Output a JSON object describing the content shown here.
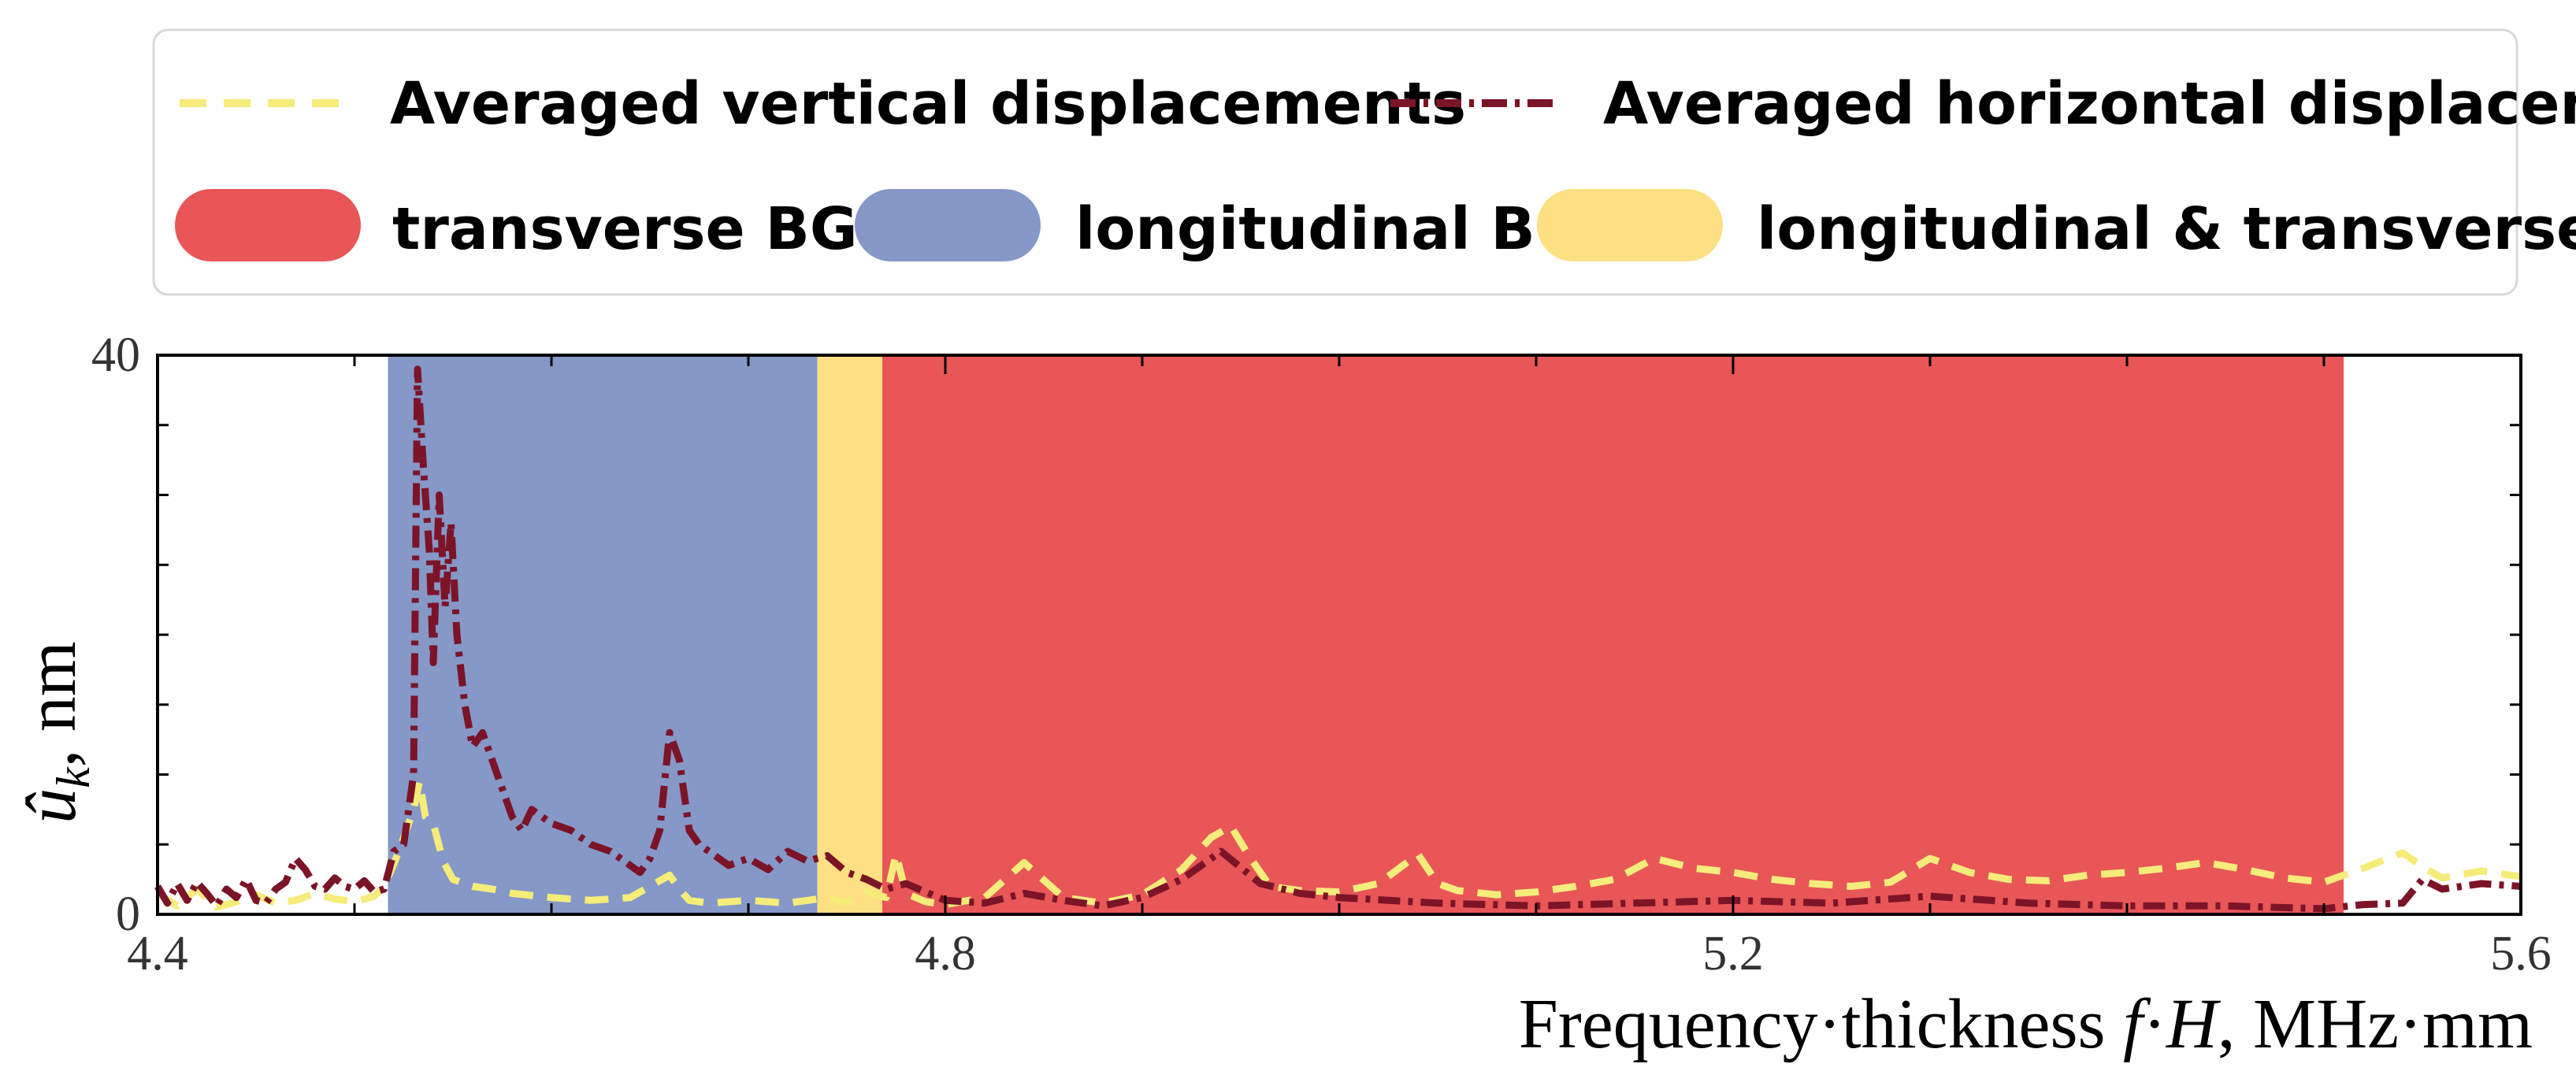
{
  "chart_data": {
    "type": "line",
    "title": "",
    "xlabel": "Frequency·thickness  f·H, MHz·mm",
    "ylabel": "û_k, nm",
    "ylabel_main": "û",
    "ylabel_sub": "k",
    "ylabel_unit": ", nm",
    "xlabel_prefix": "Frequency·thickness  ",
    "xlabel_f": "f",
    "xlabel_dot": "·",
    "xlabel_H": "H",
    "xlabel_unit": ", MHz·mm",
    "xlim": [
      4.4,
      5.6
    ],
    "ylim": [
      0,
      40
    ],
    "x_ticks": [
      4.4,
      4.8,
      5.2,
      5.6
    ],
    "x_tick_labels": [
      "4.4",
      "4.8",
      "5.2",
      "5.6"
    ],
    "y_ticks": [
      0,
      40
    ],
    "y_tick_labels": [
      "0",
      "40"
    ],
    "legend_position": "top",
    "bands": [
      {
        "name": "longitudinal BG",
        "x0": 4.517,
        "x1": 4.735,
        "color": "#8598c8"
      },
      {
        "name": "longitudinal & transverse BG",
        "x0": 4.735,
        "x1": 4.768,
        "color": "#fde084"
      },
      {
        "name": "transverse BG",
        "x0": 4.768,
        "x1": 5.51,
        "color": "#e85658"
      }
    ],
    "legend_entries": [
      {
        "label": "Averaged vertical displacements",
        "kind": "line",
        "color": "#f5ec7a"
      },
      {
        "label": "Averaged horizontal displacement",
        "kind": "line",
        "color": "#7c1428"
      },
      {
        "label": "transverse BG",
        "kind": "patch",
        "color": "#e85658"
      },
      {
        "label": "longitudinal BG",
        "kind": "patch",
        "color": "#8598c8"
      },
      {
        "label": "longitudinal & transverse BG",
        "kind": "patch",
        "color": "#fde084"
      }
    ],
    "series": [
      {
        "name": "Averaged vertical displacements",
        "color": "#f5ec7a",
        "style": "dashed",
        "x": [
          4.4,
          4.41,
          4.42,
          4.43,
          4.44,
          4.45,
          4.46,
          4.47,
          4.48,
          4.49,
          4.5,
          4.51,
          4.515,
          4.52,
          4.525,
          4.53,
          4.533,
          4.536,
          4.54,
          4.545,
          4.55,
          4.56,
          4.57,
          4.58,
          4.6,
          4.62,
          4.64,
          4.66,
          4.665,
          4.67,
          4.68,
          4.7,
          4.72,
          4.73,
          4.74,
          4.75,
          4.76,
          4.77,
          4.775,
          4.78,
          4.79,
          4.8,
          4.82,
          4.84,
          4.86,
          4.88,
          4.9,
          4.92,
          4.935,
          4.945,
          4.955,
          4.965,
          4.98,
          5.0,
          5.02,
          5.04,
          5.05,
          5.06,
          5.08,
          5.1,
          5.12,
          5.14,
          5.16,
          5.18,
          5.2,
          5.22,
          5.24,
          5.26,
          5.28,
          5.3,
          5.32,
          5.34,
          5.36,
          5.38,
          5.4,
          5.42,
          5.44,
          5.46,
          5.48,
          5.5,
          5.52,
          5.54,
          5.55,
          5.56,
          5.58,
          5.6
        ],
        "values": [
          1.5,
          0.6,
          1.8,
          0.5,
          0.9,
          1.4,
          0.8,
          1.0,
          1.5,
          1.1,
          0.9,
          1.3,
          2.0,
          3.6,
          5.5,
          7.5,
          9.5,
          7.0,
          6.5,
          3.8,
          2.5,
          2.0,
          1.8,
          1.5,
          1.2,
          1.0,
          1.2,
          2.8,
          1.8,
          1.0,
          0.8,
          1.0,
          0.8,
          1.0,
          1.2,
          0.8,
          1.6,
          1.2,
          4.3,
          1.5,
          0.9,
          0.7,
          1.2,
          3.7,
          1.2,
          0.8,
          1.4,
          3.2,
          5.5,
          6.3,
          4.0,
          2.0,
          1.7,
          1.6,
          2.2,
          4.3,
          2.2,
          1.7,
          1.4,
          1.6,
          2.0,
          2.5,
          4.0,
          3.3,
          3.0,
          2.5,
          2.2,
          2.0,
          2.3,
          4.0,
          3.0,
          2.5,
          2.4,
          2.8,
          3.0,
          3.3,
          3.7,
          3.2,
          2.6,
          2.3,
          3.3,
          4.4,
          3.4,
          2.6,
          3.1,
          2.7
        ]
      },
      {
        "name": "Averaged horizontal displacement",
        "color": "#7c1428",
        "style": "dashdot",
        "x": [
          4.4,
          4.405,
          4.41,
          4.415,
          4.42,
          4.425,
          4.43,
          4.435,
          4.44,
          4.445,
          4.45,
          4.455,
          4.46,
          4.465,
          4.47,
          4.475,
          4.48,
          4.485,
          4.49,
          4.495,
          4.5,
          4.505,
          4.51,
          4.515,
          4.52,
          4.525,
          4.53,
          4.532,
          4.535,
          4.538,
          4.54,
          4.543,
          4.546,
          4.549,
          4.552,
          4.556,
          4.56,
          4.565,
          4.57,
          4.575,
          4.58,
          4.585,
          4.59,
          4.6,
          4.61,
          4.62,
          4.63,
          4.64,
          4.645,
          4.65,
          4.655,
          4.66,
          4.665,
          4.67,
          4.675,
          4.68,
          4.69,
          4.7,
          4.71,
          4.72,
          4.73,
          4.74,
          4.75,
          4.76,
          4.77,
          4.78,
          4.8,
          4.82,
          4.84,
          4.86,
          4.88,
          4.9,
          4.92,
          4.94,
          4.96,
          4.98,
          5.0,
          5.05,
          5.1,
          5.15,
          5.2,
          5.25,
          5.3,
          5.35,
          5.4,
          5.45,
          5.5,
          5.52,
          5.54,
          5.55,
          5.56,
          5.58,
          5.6
        ],
        "values": [
          2.0,
          0.8,
          2.2,
          1.0,
          2.3,
          1.5,
          0.6,
          1.8,
          1.2,
          2.5,
          1.0,
          0.8,
          1.8,
          2.3,
          4.0,
          3.2,
          2.0,
          1.8,
          2.6,
          2.0,
          1.8,
          2.4,
          1.6,
          1.8,
          4.5,
          5.0,
          10.0,
          39.0,
          32.0,
          26.0,
          18.0,
          30.0,
          22.0,
          28.0,
          20.0,
          15.0,
          12.0,
          13.0,
          11.0,
          9.0,
          7.0,
          6.0,
          7.5,
          6.5,
          6.0,
          5.0,
          4.5,
          3.5,
          3.0,
          4.0,
          6.0,
          13.0,
          11.0,
          6.0,
          5.0,
          4.5,
          3.5,
          4.0,
          3.2,
          4.5,
          3.8,
          4.2,
          3.0,
          2.5,
          1.8,
          2.2,
          1.0,
          0.8,
          1.5,
          1.0,
          0.6,
          1.2,
          2.5,
          4.5,
          2.2,
          1.5,
          1.2,
          0.8,
          0.6,
          0.8,
          1.0,
          0.8,
          1.3,
          0.8,
          0.6,
          0.6,
          0.4,
          0.7,
          0.8,
          2.5,
          1.8,
          2.2,
          2.0
        ]
      }
    ]
  }
}
